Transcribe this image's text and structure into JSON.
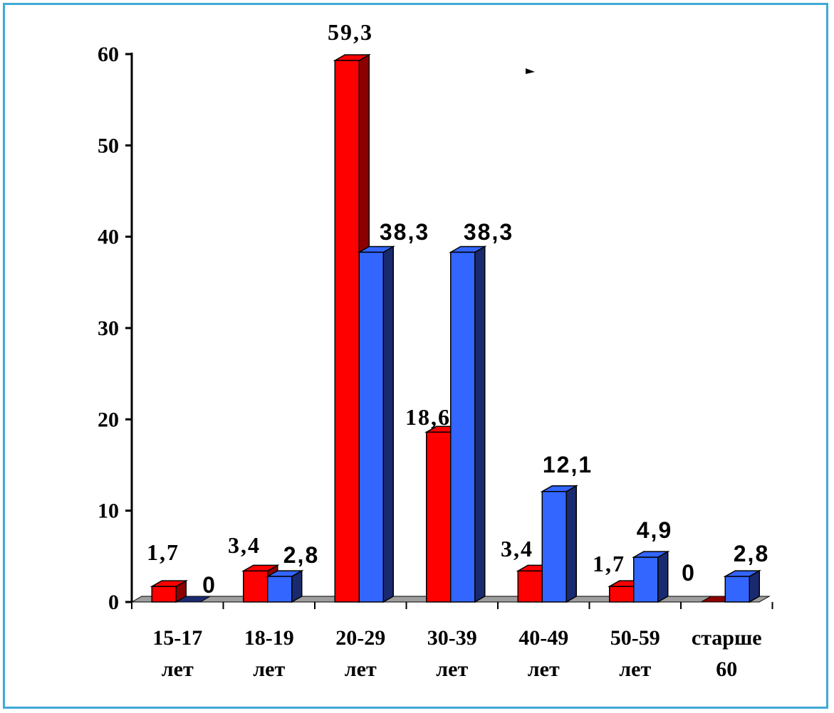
{
  "chart_data": {
    "type": "bar",
    "title": "",
    "xlabel": "",
    "ylabel": "",
    "ylim": [
      0,
      60
    ],
    "yticks": [
      "0",
      "10",
      "20",
      "30",
      "40",
      "50",
      "60"
    ],
    "categories": [
      [
        "15-17",
        "лет"
      ],
      [
        "18-19",
        "лет"
      ],
      [
        "20-29",
        "лет"
      ],
      [
        "30-39",
        "лет"
      ],
      [
        "40-49",
        "лет"
      ],
      [
        "50-59",
        "лет"
      ],
      [
        "старше",
        "60"
      ]
    ],
    "series": [
      {
        "color": "#ff0000",
        "side": "#8b0000",
        "values": [
          1.7,
          3.4,
          59.3,
          18.6,
          3.4,
          1.7,
          0
        ],
        "labels": [
          "1,7",
          "3,4",
          "59,3",
          "18,6",
          "3,4",
          "1,7",
          "0"
        ]
      },
      {
        "color": "#3366ff",
        "side": "#1a2a6e",
        "values": [
          0,
          2.8,
          38.3,
          38.3,
          12.1,
          4.9,
          2.8
        ],
        "labels": [
          "0",
          "2,8",
          "38,3",
          "38,3",
          "12,1",
          "4,9",
          "2,8"
        ]
      }
    ],
    "grid": false,
    "legend": "none"
  }
}
